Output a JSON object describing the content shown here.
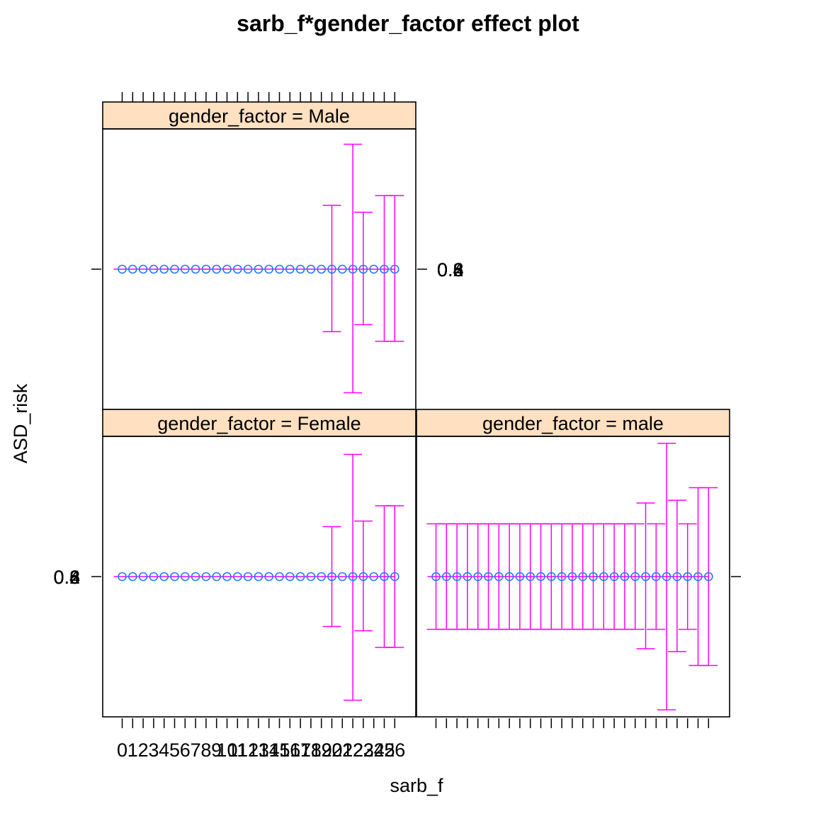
{
  "title": "sarb_f*gender_factor effect plot",
  "chart_data": {
    "type": "scatter",
    "title": "sarb_f*gender_factor effect plot",
    "xlabel": "sarb_f",
    "ylabel": "ASD_risk",
    "x_tick_labels": [
      "0",
      "1",
      "2",
      "3",
      "4",
      "5",
      "6",
      "7",
      "8",
      "9",
      "10",
      "11",
      "12",
      "13",
      "14",
      "15",
      "16",
      "17",
      "18",
      "19",
      "20",
      "21",
      "22",
      "23",
      "24",
      "25",
      "26"
    ],
    "y_tick_label": "0.2",
    "y_tick_overlap_labels": [
      "0.2",
      "0.4",
      "0.6",
      "0.8"
    ],
    "grid": false,
    "colors": {
      "point": "#1f78ff",
      "errorbar": "#ff00ff",
      "strip": "#ffe0c0"
    },
    "panels": [
      {
        "strip": "gender_factor = Male",
        "position": "top-left",
        "y_value_line": "0.2",
        "x": [
          0,
          1,
          2,
          3,
          4,
          5,
          6,
          7,
          8,
          9,
          10,
          11,
          12,
          13,
          14,
          15,
          16,
          17,
          18,
          19,
          20,
          21,
          22,
          23,
          24,
          25,
          26
        ],
        "errorbars_from_index": 20,
        "upper": [
          null,
          null,
          null,
          null,
          null,
          null,
          null,
          null,
          null,
          null,
          null,
          null,
          null,
          null,
          null,
          null,
          null,
          null,
          null,
          null,
          0.46,
          null,
          0.9,
          0.41,
          null,
          0.53,
          0.53
        ],
        "lower": [
          null,
          null,
          null,
          null,
          null,
          null,
          null,
          null,
          null,
          null,
          null,
          null,
          null,
          null,
          null,
          null,
          null,
          null,
          null,
          null,
          -0.45,
          null,
          -0.89,
          -0.4,
          null,
          -0.52,
          -0.52
        ]
      },
      {
        "strip": "gender_factor = Female",
        "position": "bottom-left",
        "x": [
          0,
          1,
          2,
          3,
          4,
          5,
          6,
          7,
          8,
          9,
          10,
          11,
          12,
          13,
          14,
          15,
          16,
          17,
          18,
          19,
          20,
          21,
          22,
          23,
          24,
          25,
          26
        ],
        "upper": [
          null,
          null,
          null,
          null,
          null,
          null,
          null,
          null,
          null,
          null,
          null,
          null,
          null,
          null,
          null,
          null,
          null,
          null,
          null,
          null,
          0.36,
          null,
          0.88,
          0.4,
          null,
          0.51,
          0.51
        ],
        "lower": [
          null,
          null,
          null,
          null,
          null,
          null,
          null,
          null,
          null,
          null,
          null,
          null,
          null,
          null,
          null,
          null,
          null,
          null,
          null,
          null,
          -0.36,
          null,
          -0.89,
          -0.39,
          null,
          -0.51,
          -0.51
        ]
      },
      {
        "strip": "gender_factor = male",
        "position": "bottom-right",
        "x": [
          0,
          1,
          2,
          3,
          4,
          5,
          6,
          7,
          8,
          9,
          10,
          11,
          12,
          13,
          14,
          15,
          16,
          17,
          18,
          19,
          20,
          21,
          22,
          23,
          24,
          25,
          26
        ],
        "upper": [
          0.38,
          0.38,
          0.38,
          0.38,
          0.38,
          0.38,
          0.38,
          0.38,
          0.38,
          0.38,
          0.38,
          0.38,
          0.38,
          0.38,
          0.38,
          0.38,
          0.38,
          0.38,
          0.38,
          0.38,
          0.53,
          0.38,
          0.96,
          0.55,
          0.38,
          0.64,
          0.64
        ],
        "lower": [
          -0.38,
          -0.38,
          -0.38,
          -0.38,
          -0.38,
          -0.38,
          -0.38,
          -0.38,
          -0.38,
          -0.38,
          -0.38,
          -0.38,
          -0.38,
          -0.38,
          -0.38,
          -0.38,
          -0.38,
          -0.38,
          -0.38,
          -0.38,
          -0.52,
          -0.38,
          -0.96,
          -0.54,
          -0.38,
          -0.64,
          -0.64
        ]
      }
    ]
  }
}
